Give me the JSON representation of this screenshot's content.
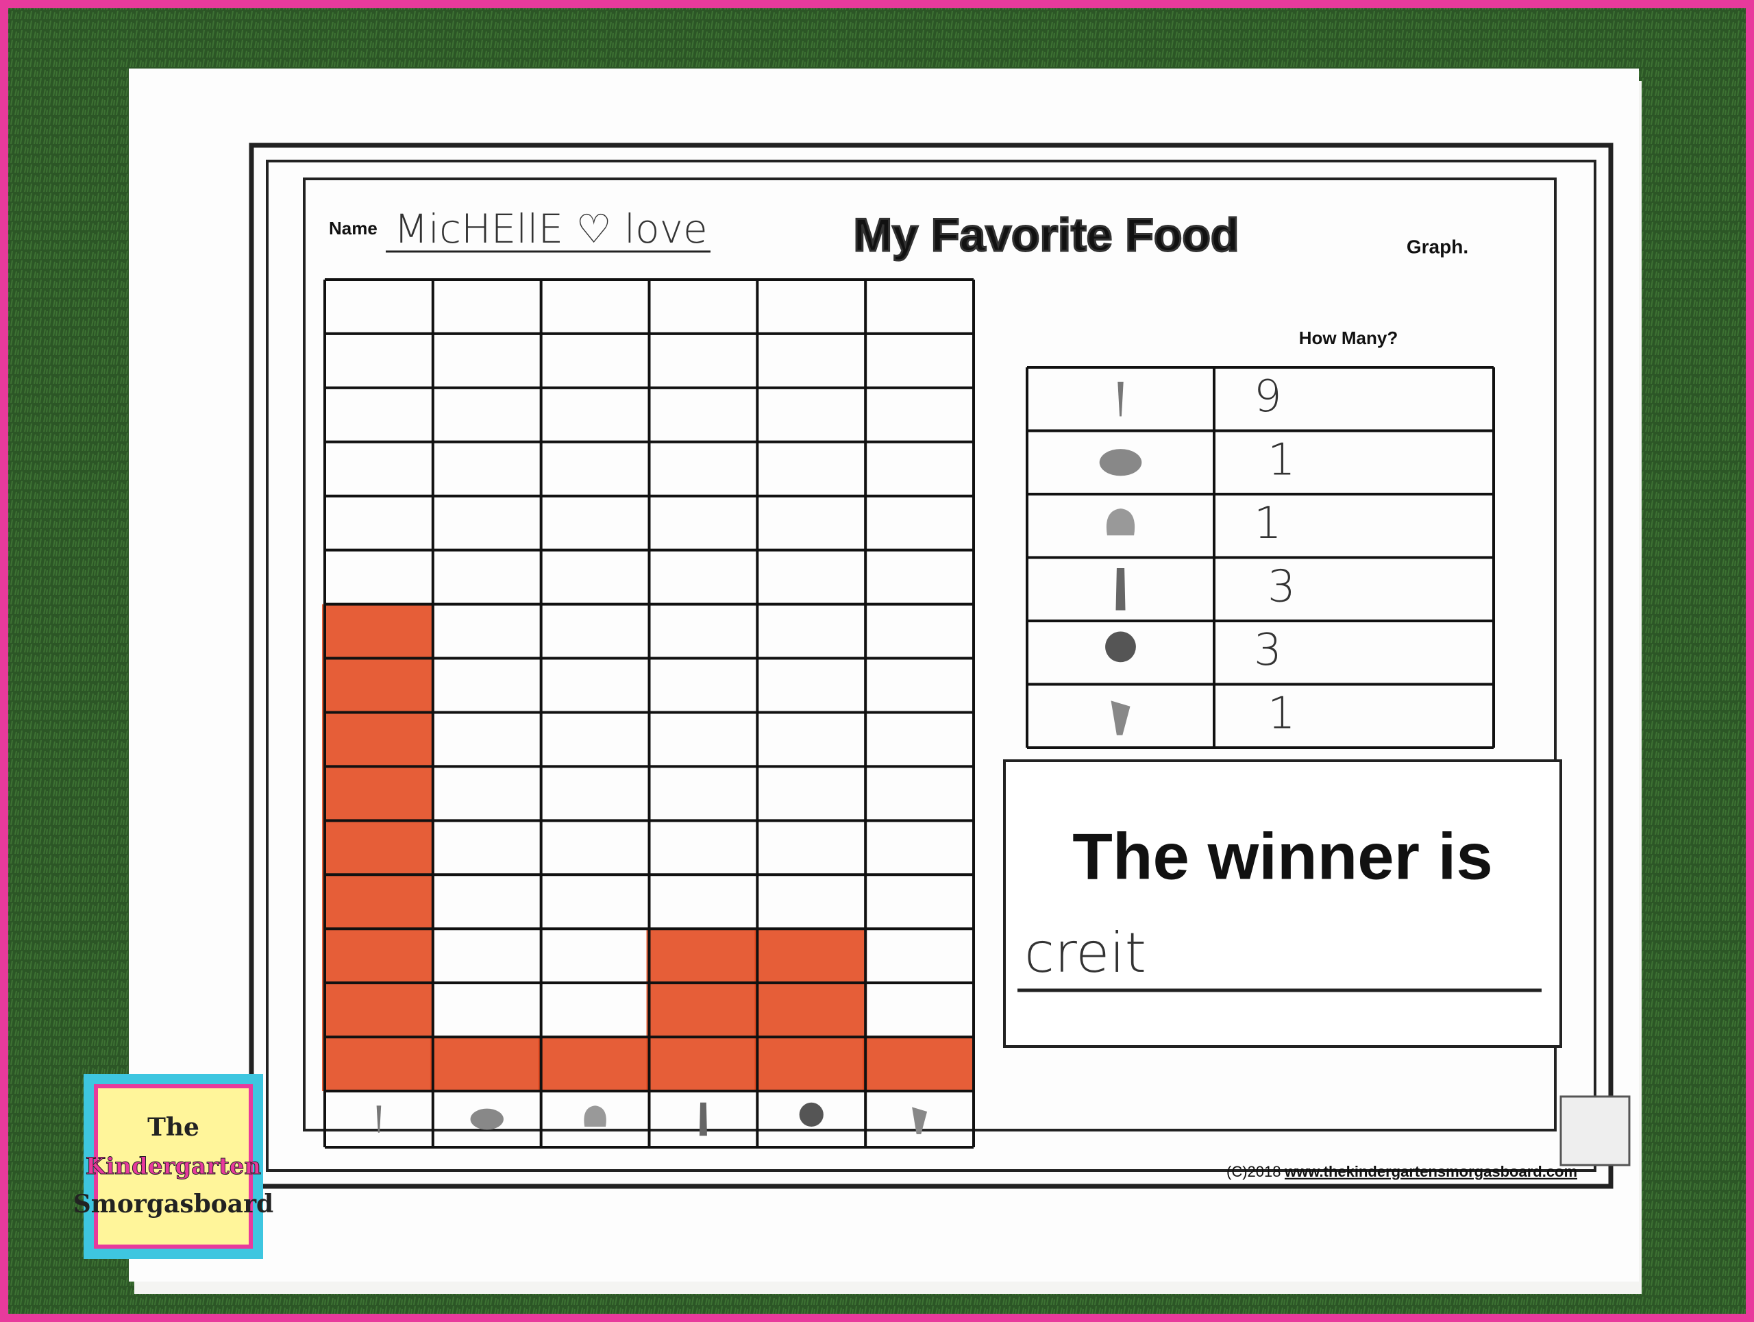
{
  "header": {
    "name_label": "Name",
    "name": "MicHEllE ♡ love",
    "title": "My Favorite Food",
    "subtitle": "Graph."
  },
  "tally": {
    "header": "How Many?",
    "counts": [
      9,
      1,
      1,
      3,
      3,
      1
    ]
  },
  "winner": {
    "label": "The winner is",
    "answer": "creit"
  },
  "footer": {
    "copyright": "(C)2018",
    "url": "www.thekindergartensmorgasboard.com"
  },
  "logo": {
    "lines": [
      "The",
      "Kindergarten",
      "Smorgasboard"
    ]
  }
}
